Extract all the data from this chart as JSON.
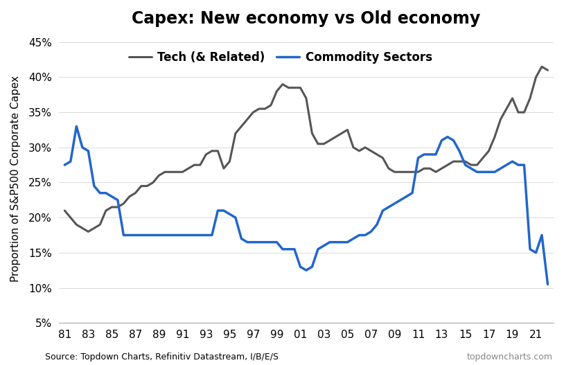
{
  "title": "Capex: New economy vs Old economy",
  "ylabel": "Proportion of S&P500 Corporate Capex",
  "source_left": "Source: Topdown Charts, Refinitiv Datastream, I/B/E/S",
  "source_right": "topdowncharts.com",
  "ylim": [
    0.05,
    0.46
  ],
  "yticks": [
    0.05,
    0.1,
    0.15,
    0.2,
    0.25,
    0.3,
    0.35,
    0.4,
    0.45
  ],
  "xtick_labels": [
    "81",
    "83",
    "85",
    "87",
    "89",
    "91",
    "93",
    "95",
    "97",
    "99",
    "01",
    "03",
    "05",
    "07",
    "09",
    "11",
    "13",
    "15",
    "17",
    "19",
    "21"
  ],
  "tech_color": "#555555",
  "commodity_color": "#2266cc",
  "tech_lw": 2.2,
  "commodity_lw": 2.5,
  "tech_x": [
    1981,
    1981.5,
    1982,
    1982.5,
    1983,
    1983.5,
    1984,
    1984.5,
    1985,
    1985.5,
    1986,
    1986.5,
    1987,
    1987.5,
    1988,
    1988.5,
    1989,
    1989.5,
    1990,
    1990.5,
    1991,
    1991.5,
    1992,
    1992.5,
    1993,
    1993.5,
    1994,
    1994.5,
    1995,
    1995.5,
    1996,
    1996.5,
    1997,
    1997.5,
    1998,
    1998.5,
    1999,
    1999.5,
    2000,
    2000.5,
    2001,
    2001.5,
    2002,
    2002.5,
    2003,
    2003.5,
    2004,
    2004.5,
    2005,
    2005.5,
    2006,
    2006.5,
    2007,
    2007.5,
    2008,
    2008.5,
    2009,
    2009.5,
    2010,
    2010.5,
    2011,
    2011.5,
    2012,
    2012.5,
    2013,
    2013.5,
    2014,
    2014.5,
    2015,
    2015.5,
    2016,
    2016.5,
    2017,
    2017.5,
    2018,
    2018.5,
    2019,
    2019.5,
    2020,
    2020.5,
    2021,
    2021.5,
    2022
  ],
  "tech_y": [
    0.21,
    0.2,
    0.19,
    0.185,
    0.18,
    0.185,
    0.19,
    0.21,
    0.215,
    0.215,
    0.22,
    0.23,
    0.235,
    0.245,
    0.245,
    0.25,
    0.26,
    0.265,
    0.265,
    0.265,
    0.265,
    0.27,
    0.275,
    0.275,
    0.29,
    0.295,
    0.295,
    0.27,
    0.28,
    0.32,
    0.33,
    0.34,
    0.35,
    0.355,
    0.355,
    0.36,
    0.38,
    0.39,
    0.385,
    0.385,
    0.385,
    0.37,
    0.32,
    0.305,
    0.305,
    0.31,
    0.315,
    0.32,
    0.325,
    0.3,
    0.295,
    0.3,
    0.295,
    0.29,
    0.285,
    0.27,
    0.265,
    0.265,
    0.265,
    0.265,
    0.265,
    0.27,
    0.27,
    0.265,
    0.27,
    0.275,
    0.28,
    0.28,
    0.28,
    0.275,
    0.275,
    0.285,
    0.295,
    0.315,
    0.34,
    0.355,
    0.37,
    0.35,
    0.35,
    0.37,
    0.4,
    0.415,
    0.41
  ],
  "commodity_x": [
    1981,
    1981.5,
    1982,
    1982.5,
    1983,
    1983.5,
    1984,
    1984.5,
    1985,
    1985.5,
    1986,
    1986.5,
    1987,
    1987.5,
    1988,
    1988.5,
    1989,
    1989.5,
    1990,
    1990.5,
    1991,
    1991.5,
    1992,
    1992.5,
    1993,
    1993.5,
    1994,
    1994.5,
    1995,
    1995.5,
    1996,
    1996.5,
    1997,
    1997.5,
    1998,
    1998.5,
    1999,
    1999.5,
    2000,
    2000.5,
    2001,
    2001.5,
    2002,
    2002.5,
    2003,
    2003.5,
    2004,
    2004.5,
    2005,
    2005.5,
    2006,
    2006.5,
    2007,
    2007.5,
    2008,
    2008.5,
    2009,
    2009.5,
    2010,
    2010.5,
    2011,
    2011.5,
    2012,
    2012.5,
    2013,
    2013.5,
    2014,
    2014.5,
    2015,
    2015.5,
    2016,
    2016.5,
    2017,
    2017.5,
    2018,
    2018.5,
    2019,
    2019.5,
    2020,
    2020.5,
    2021,
    2021.5,
    2022
  ],
  "commodity_y": [
    0.275,
    0.28,
    0.33,
    0.3,
    0.295,
    0.245,
    0.235,
    0.235,
    0.23,
    0.225,
    0.175,
    0.175,
    0.175,
    0.175,
    0.175,
    0.175,
    0.175,
    0.175,
    0.175,
    0.175,
    0.175,
    0.175,
    0.175,
    0.175,
    0.175,
    0.175,
    0.21,
    0.21,
    0.205,
    0.2,
    0.17,
    0.165,
    0.165,
    0.165,
    0.165,
    0.165,
    0.165,
    0.155,
    0.155,
    0.155,
    0.13,
    0.125,
    0.13,
    0.155,
    0.16,
    0.165,
    0.165,
    0.165,
    0.165,
    0.17,
    0.175,
    0.175,
    0.18,
    0.19,
    0.21,
    0.215,
    0.22,
    0.225,
    0.23,
    0.235,
    0.285,
    0.29,
    0.29,
    0.29,
    0.31,
    0.315,
    0.31,
    0.295,
    0.275,
    0.27,
    0.265,
    0.265,
    0.265,
    0.265,
    0.27,
    0.275,
    0.28,
    0.275,
    0.275,
    0.155,
    0.15,
    0.175,
    0.105
  ]
}
